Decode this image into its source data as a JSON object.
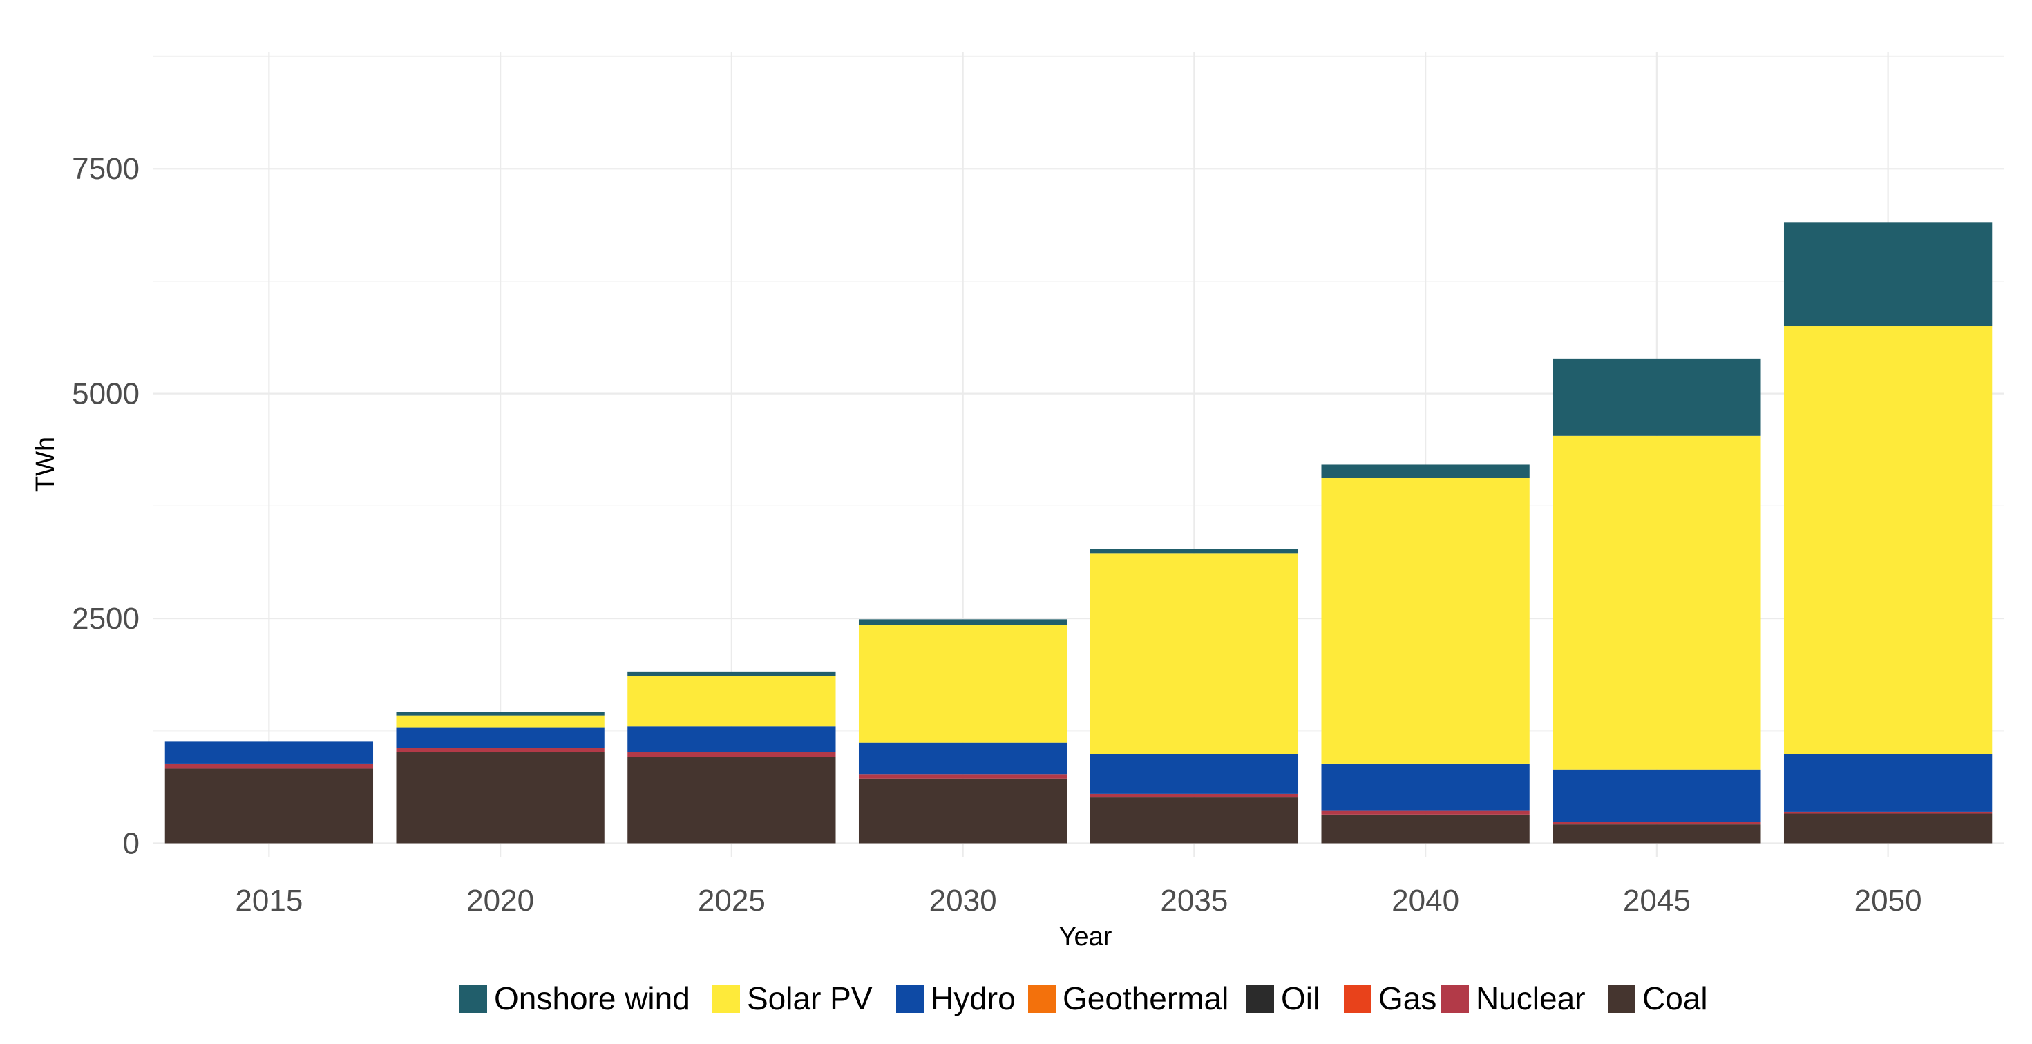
{
  "chart_data": {
    "type": "bar",
    "stacked": true,
    "title": "",
    "xlabel": "Year",
    "ylabel": "TWh",
    "ylim": [
      -150,
      8800
    ],
    "yticks": [
      0,
      2500,
      5000,
      7500
    ],
    "y_tick_labels": [
      "0",
      "2500",
      "5000",
      "7500"
    ],
    "y_minor_ticks": [
      1250,
      3750,
      6250,
      8750
    ],
    "grid": true,
    "legend_position": "bottom",
    "categories": [
      "2015",
      "2020",
      "2025",
      "2030",
      "2035",
      "2040",
      "2045",
      "2050"
    ],
    "series": [
      {
        "name": "Coal",
        "color": "#45352f",
        "values": [
          830,
          1010,
          960,
          720,
          510,
          320,
          210,
          330
        ]
      },
      {
        "name": "Nuclear",
        "color": "#b23a48",
        "values": [
          50,
          50,
          50,
          50,
          40,
          40,
          30,
          20
        ]
      },
      {
        "name": "Gas",
        "color": "#e8421b",
        "values": [
          0,
          0,
          0,
          0,
          0,
          0,
          0,
          0
        ]
      },
      {
        "name": "Oil",
        "color": "#2b2b2b",
        "values": [
          0,
          0,
          0,
          0,
          0,
          0,
          0,
          0
        ]
      },
      {
        "name": "Geothermal",
        "color": "#f3710c",
        "values": [
          0,
          0,
          0,
          0,
          0,
          0,
          0,
          0
        ]
      },
      {
        "name": "Hydro",
        "color": "#0e4aa5",
        "values": [
          250,
          230,
          290,
          350,
          440,
          520,
          580,
          640
        ]
      },
      {
        "name": "Solar PV",
        "color": "#feea3a",
        "values": [
          0,
          130,
          560,
          1310,
          2230,
          3180,
          3710,
          4760
        ]
      },
      {
        "name": "Onshore wind",
        "color": "#215e6b",
        "values": [
          0,
          40,
          50,
          60,
          50,
          150,
          860,
          1150
        ]
      }
    ],
    "legend_order": [
      "Onshore wind",
      "Solar PV",
      "Hydro",
      "Geothermal",
      "Oil",
      "Gas",
      "Nuclear",
      "Coal"
    ]
  }
}
